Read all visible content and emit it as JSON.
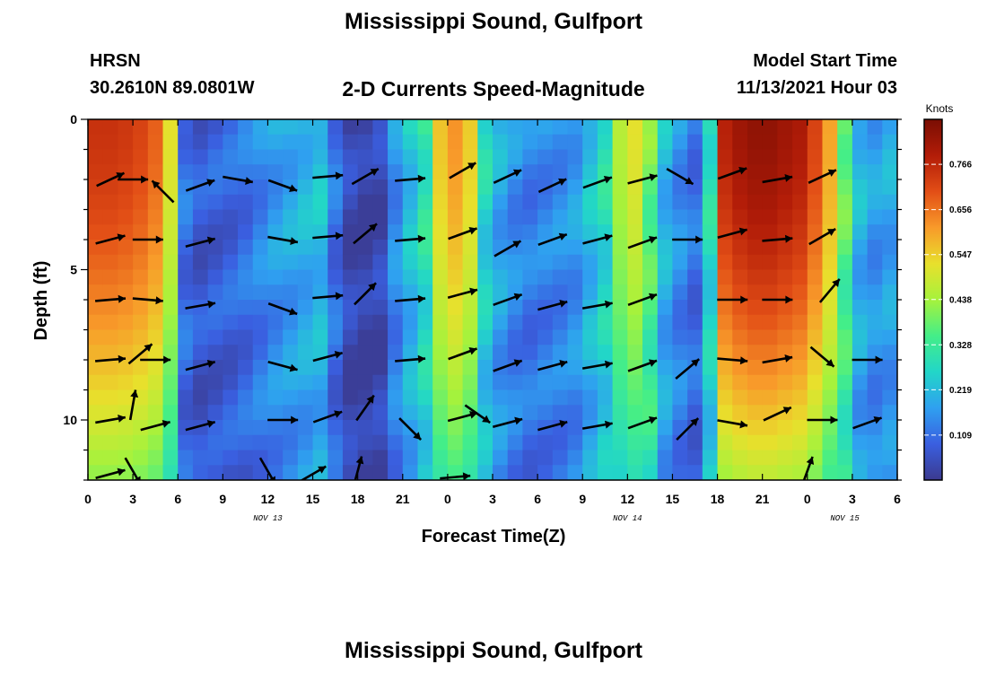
{
  "page": {
    "title": "Mississippi Sound, Gulfport",
    "station_model": "HRSN",
    "station_coords": "30.2610N  89.0801W",
    "subtitle": "2-D Currents Speed-Magnitude",
    "model_start_label": "Model Start Time",
    "model_start_value": "11/13/2021 Hour 03",
    "repeat_title": "Mississippi Sound, Gulfport"
  },
  "chart_data": {
    "type": "heatmap",
    "title": "2-D Currents Speed-Magnitude",
    "xlabel": "Forecast Time(Z)",
    "ylabel": "Depth (ft)",
    "x_tick_labels": [
      "0",
      "3",
      "6",
      "9",
      "12",
      "15",
      "18",
      "21",
      "0",
      "3",
      "6",
      "9",
      "12",
      "15",
      "18",
      "21",
      "0",
      "3",
      "6"
    ],
    "date_labels": [
      "NOV 13",
      "NOV 14",
      "NOV 15"
    ],
    "y_tick_labels": [
      "0",
      "5",
      "10"
    ],
    "ylim": [
      0,
      12
    ],
    "y_inverted": true,
    "colorbar": {
      "label": "Knots",
      "ticks": [
        "0.766",
        "0.656",
        "0.547",
        "0.438",
        "0.328",
        "0.219",
        "0.109"
      ],
      "range": [
        0,
        0.875
      ],
      "colors": [
        "#3b3a8f",
        "#3a5fe0",
        "#2fa0f0",
        "#22d6c8",
        "#44ee88",
        "#a6f23c",
        "#e8e02c",
        "#f89a2a",
        "#e24e16",
        "#b21c08",
        "#7a0e03"
      ]
    },
    "columns_hours": [
      0,
      1,
      2,
      3,
      4,
      5,
      6,
      7,
      8,
      9,
      10,
      11,
      12,
      13,
      14,
      15,
      16,
      17,
      18,
      19,
      20,
      21,
      22,
      23,
      24,
      25,
      26,
      27,
      28,
      29,
      30,
      31,
      32,
      33,
      34,
      35,
      36,
      37,
      38,
      39,
      40,
      41,
      42,
      43,
      44,
      45,
      46,
      47,
      48,
      49,
      50,
      51,
      52,
      53,
      54
    ],
    "speed_profile_surface": [
      0.75,
      0.75,
      0.74,
      0.72,
      0.68,
      0.52,
      0.12,
      0.08,
      0.09,
      0.1,
      0.12,
      0.15,
      0.18,
      0.2,
      0.22,
      0.24,
      0.12,
      0.04,
      0.02,
      0.04,
      0.16,
      0.24,
      0.32,
      0.56,
      0.62,
      0.55,
      0.28,
      0.2,
      0.16,
      0.14,
      0.15,
      0.16,
      0.18,
      0.24,
      0.3,
      0.46,
      0.52,
      0.4,
      0.22,
      0.16,
      0.12,
      0.3,
      0.78,
      0.82,
      0.84,
      0.84,
      0.82,
      0.8,
      0.72,
      0.6,
      0.4,
      0.22,
      0.18,
      0.2,
      0.2
    ],
    "vectors": [
      {
        "t": 1.5,
        "d": 2,
        "angle": -25
      },
      {
        "t": 3,
        "d": 2,
        "angle": 0
      },
      {
        "t": 5,
        "d": 2.4,
        "angle": -135
      },
      {
        "t": 7.5,
        "d": 2.2,
        "angle": -20
      },
      {
        "t": 10,
        "d": 2,
        "angle": 10
      },
      {
        "t": 13,
        "d": 2.2,
        "angle": 20
      },
      {
        "t": 16,
        "d": 1.9,
        "angle": -5
      },
      {
        "t": 18.5,
        "d": 1.9,
        "angle": -30
      },
      {
        "t": 21.5,
        "d": 2,
        "angle": -5
      },
      {
        "t": 25,
        "d": 1.7,
        "angle": -30
      },
      {
        "t": 28,
        "d": 1.9,
        "angle": -25
      },
      {
        "t": 31,
        "d": 2.2,
        "angle": -25
      },
      {
        "t": 34,
        "d": 2.1,
        "angle": -20
      },
      {
        "t": 37,
        "d": 2,
        "angle": -15
      },
      {
        "t": 39.5,
        "d": 1.9,
        "angle": 30
      },
      {
        "t": 43,
        "d": 1.8,
        "angle": -20
      },
      {
        "t": 46,
        "d": 2,
        "angle": -10
      },
      {
        "t": 49,
        "d": 1.9,
        "angle": -25
      },
      {
        "t": 1.5,
        "d": 4,
        "angle": -15
      },
      {
        "t": 4,
        "d": 4,
        "angle": 0
      },
      {
        "t": 7.5,
        "d": 4.1,
        "angle": -15
      },
      {
        "t": 13,
        "d": 4,
        "angle": 10
      },
      {
        "t": 16,
        "d": 3.9,
        "angle": -5
      },
      {
        "t": 18.5,
        "d": 3.8,
        "angle": -40
      },
      {
        "t": 21.5,
        "d": 4,
        "angle": -5
      },
      {
        "t": 25,
        "d": 3.8,
        "angle": -20
      },
      {
        "t": 28,
        "d": 4.3,
        "angle": -30
      },
      {
        "t": 31,
        "d": 4,
        "angle": -20
      },
      {
        "t": 34,
        "d": 4,
        "angle": -15
      },
      {
        "t": 37,
        "d": 4.1,
        "angle": -20
      },
      {
        "t": 40,
        "d": 4,
        "angle": 0
      },
      {
        "t": 43,
        "d": 3.8,
        "angle": -15
      },
      {
        "t": 46,
        "d": 4,
        "angle": -5
      },
      {
        "t": 49,
        "d": 3.9,
        "angle": -30
      },
      {
        "t": 1.5,
        "d": 6,
        "angle": -5
      },
      {
        "t": 4,
        "d": 6,
        "angle": 5
      },
      {
        "t": 7.5,
        "d": 6.2,
        "angle": -10
      },
      {
        "t": 13,
        "d": 6.3,
        "angle": 20
      },
      {
        "t": 16,
        "d": 5.9,
        "angle": -5
      },
      {
        "t": 18.5,
        "d": 5.8,
        "angle": -45
      },
      {
        "t": 21.5,
        "d": 6,
        "angle": -5
      },
      {
        "t": 25,
        "d": 5.8,
        "angle": -15
      },
      {
        "t": 28,
        "d": 6,
        "angle": -20
      },
      {
        "t": 31,
        "d": 6.2,
        "angle": -15
      },
      {
        "t": 34,
        "d": 6.2,
        "angle": -10
      },
      {
        "t": 37,
        "d": 6,
        "angle": -20
      },
      {
        "t": 43,
        "d": 6,
        "angle": 0
      },
      {
        "t": 46,
        "d": 6,
        "angle": 0
      },
      {
        "t": 49.5,
        "d": 5.7,
        "angle": -50
      },
      {
        "t": 1.5,
        "d": 8,
        "angle": -5
      },
      {
        "t": 3.5,
        "d": 7.8,
        "angle": -40
      },
      {
        "t": 4.5,
        "d": 8,
        "angle": 0
      },
      {
        "t": 7.5,
        "d": 8.2,
        "angle": -15
      },
      {
        "t": 13,
        "d": 8.2,
        "angle": 15
      },
      {
        "t": 16,
        "d": 7.9,
        "angle": -15
      },
      {
        "t": 21.5,
        "d": 8,
        "angle": -5
      },
      {
        "t": 25,
        "d": 7.8,
        "angle": -20
      },
      {
        "t": 28,
        "d": 8.2,
        "angle": -20
      },
      {
        "t": 31,
        "d": 8.2,
        "angle": -15
      },
      {
        "t": 34,
        "d": 8.2,
        "angle": -10
      },
      {
        "t": 37,
        "d": 8.2,
        "angle": -20
      },
      {
        "t": 40,
        "d": 8.3,
        "angle": -40
      },
      {
        "t": 43,
        "d": 8,
        "angle": 5
      },
      {
        "t": 46,
        "d": 8,
        "angle": -10
      },
      {
        "t": 49,
        "d": 7.9,
        "angle": 40
      },
      {
        "t": 52,
        "d": 8,
        "angle": 0
      },
      {
        "t": 1.5,
        "d": 10,
        "angle": -10
      },
      {
        "t": 3,
        "d": 9.5,
        "angle": -80
      },
      {
        "t": 4.5,
        "d": 10.2,
        "angle": -15
      },
      {
        "t": 7.5,
        "d": 10.2,
        "angle": -15
      },
      {
        "t": 13,
        "d": 10,
        "angle": 0
      },
      {
        "t": 16,
        "d": 9.9,
        "angle": -20
      },
      {
        "t": 18.5,
        "d": 9.6,
        "angle": -55
      },
      {
        "t": 21.5,
        "d": 10.3,
        "angle": 45
      },
      {
        "t": 25,
        "d": 9.9,
        "angle": -15
      },
      {
        "t": 26,
        "d": 9.8,
        "angle": 35
      },
      {
        "t": 28,
        "d": 10.1,
        "angle": -15
      },
      {
        "t": 31,
        "d": 10.2,
        "angle": -15
      },
      {
        "t": 34,
        "d": 10.2,
        "angle": -10
      },
      {
        "t": 37,
        "d": 10.1,
        "angle": -20
      },
      {
        "t": 40,
        "d": 10.3,
        "angle": -45
      },
      {
        "t": 43,
        "d": 10.1,
        "angle": 10
      },
      {
        "t": 46,
        "d": 9.8,
        "angle": -25
      },
      {
        "t": 49,
        "d": 10,
        "angle": 0
      },
      {
        "t": 52,
        "d": 10.1,
        "angle": -20
      },
      {
        "t": 1.5,
        "d": 11.8,
        "angle": -15
      },
      {
        "t": 3,
        "d": 11.7,
        "angle": 60
      },
      {
        "t": 12,
        "d": 11.7,
        "angle": 60
      },
      {
        "t": 15,
        "d": 11.8,
        "angle": -30
      },
      {
        "t": 18,
        "d": 11.7,
        "angle": -75
      },
      {
        "t": 24.5,
        "d": 11.9,
        "angle": -5
      },
      {
        "t": 48,
        "d": 11.7,
        "angle": -70
      }
    ]
  }
}
